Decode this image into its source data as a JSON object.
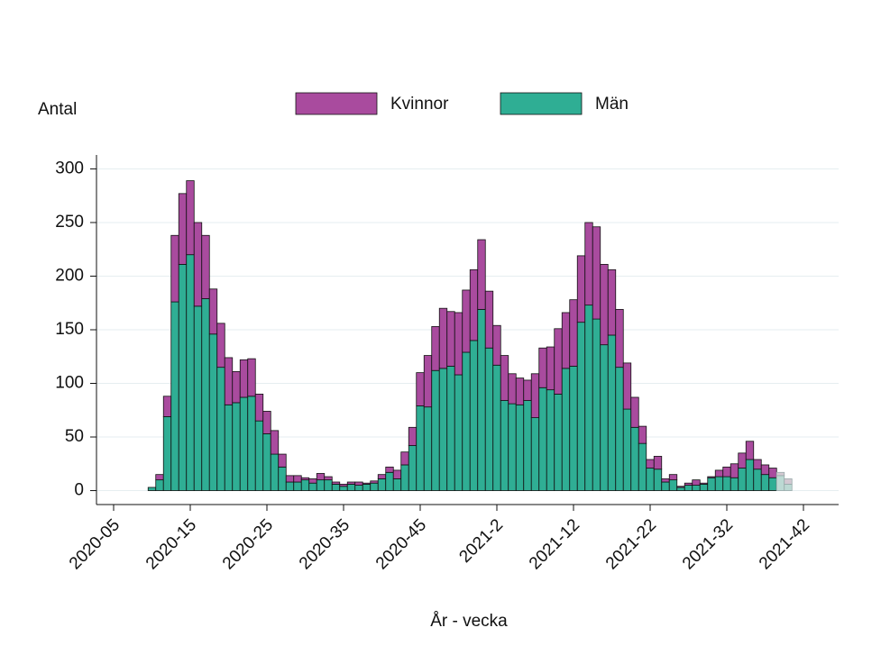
{
  "chart_data": {
    "type": "stacked_bar",
    "y_label": "Antal",
    "x_label": "År - vecka",
    "categories": [
      "2020-05",
      null,
      null,
      null,
      null,
      null,
      null,
      null,
      null,
      null,
      "2020-15",
      null,
      null,
      null,
      null,
      null,
      null,
      null,
      null,
      null,
      "2020-25",
      null,
      null,
      null,
      null,
      null,
      null,
      null,
      null,
      null,
      "2020-35",
      null,
      null,
      null,
      null,
      null,
      null,
      null,
      null,
      null,
      "2020-45",
      null,
      null,
      null,
      null,
      null,
      null,
      null,
      null,
      null,
      "2021-2",
      null,
      null,
      null,
      null,
      null,
      null,
      null,
      null,
      null,
      "2021-12",
      null,
      null,
      null,
      null,
      null,
      null,
      null,
      null,
      null,
      "2021-22",
      null,
      null,
      null,
      null,
      null,
      null,
      null,
      null,
      null,
      "2021-32",
      null,
      null,
      null,
      null,
      null,
      null,
      null,
      null,
      null,
      "2021-42"
    ],
    "series": [
      {
        "name": "Kvinnor",
        "color": "#a94b9e",
        "faded_color": "#d3c9d2",
        "values": [
          null,
          null,
          null,
          null,
          null,
          0,
          5,
          19,
          62,
          66,
          69,
          78,
          59,
          42,
          41,
          44,
          29,
          35,
          35,
          25,
          21,
          22,
          12,
          6,
          6,
          2,
          4,
          6,
          3,
          2,
          2,
          2,
          3,
          1,
          2,
          4,
          5,
          8,
          12,
          17,
          31,
          48,
          41,
          56,
          51,
          58,
          58,
          66,
          65,
          53,
          37,
          42,
          28,
          25,
          19,
          41,
          37,
          40,
          61,
          52,
          62,
          62,
          77,
          86,
          75,
          61,
          54,
          43,
          28,
          16,
          8,
          12,
          3,
          5,
          1,
          2,
          5,
          1,
          1,
          6,
          9,
          13,
          14,
          17,
          9,
          9,
          9,
          3,
          5,
          null,
          null
        ]
      },
      {
        "name": "Män",
        "color": "#2fae94",
        "faded_color": "#bcd9d3",
        "values": [
          null,
          null,
          null,
          null,
          null,
          3,
          10,
          69,
          176,
          211,
          220,
          172,
          179,
          146,
          115,
          80,
          82,
          87,
          88,
          65,
          53,
          34,
          22,
          8,
          8,
          10,
          7,
          10,
          10,
          6,
          4,
          6,
          5,
          6,
          7,
          11,
          17,
          11,
          24,
          42,
          79,
          78,
          112,
          114,
          116,
          108,
          129,
          140,
          169,
          133,
          117,
          84,
          81,
          80,
          84,
          68,
          96,
          94,
          90,
          114,
          116,
          157,
          173,
          160,
          136,
          145,
          115,
          76,
          59,
          44,
          21,
          20,
          8,
          10,
          3,
          5,
          5,
          6,
          12,
          13,
          13,
          12,
          21,
          29,
          20,
          15,
          12,
          14,
          6,
          null,
          null
        ]
      }
    ],
    "faded_count": 2,
    "ylim": [
      -13,
      313
    ],
    "yticks": [
      0,
      50,
      100,
      150,
      200,
      250,
      300
    ],
    "grid": true
  }
}
